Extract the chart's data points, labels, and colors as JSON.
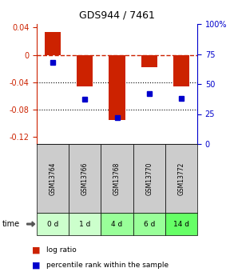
{
  "title": "GDS944 / 7461",
  "bar_values": [
    0.033,
    -0.046,
    -0.095,
    -0.018,
    -0.046
  ],
  "percentile_values": [
    68,
    37,
    22,
    42,
    38
  ],
  "categories": [
    "GSM13764",
    "GSM13766",
    "GSM13768",
    "GSM13770",
    "GSM13772"
  ],
  "time_labels": [
    "0 d",
    "1 d",
    "4 d",
    "6 d",
    "14 d"
  ],
  "ylim_left": [
    -0.13,
    0.045
  ],
  "ylim_right": [
    0,
    100
  ],
  "left_ticks": [
    0.04,
    0,
    -0.04,
    -0.08,
    -0.12
  ],
  "right_ticks": [
    100,
    75,
    50,
    25,
    0
  ],
  "bar_color": "#cc2200",
  "dot_color": "#0000cc",
  "gsm_bg_color": "#cccccc",
  "time_bg_colors": [
    "#ccffcc",
    "#ccffcc",
    "#99ff99",
    "#99ff99",
    "#66ff66"
  ],
  "zero_line_color": "#cc2200",
  "grid_line_color": "#000000",
  "title_color": "#000000",
  "left_label_color": "#cc2200",
  "right_label_color": "#0000cc"
}
